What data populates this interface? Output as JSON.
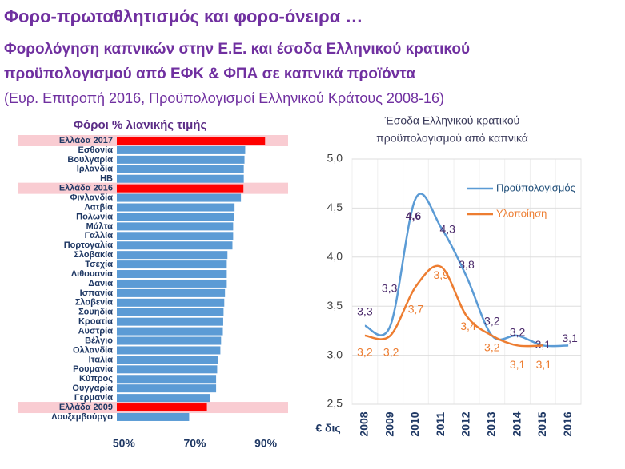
{
  "header": {
    "title": "Φορο-πρωταθλητισμός και φορο-όνειρα …",
    "subtitle": [
      "Φορολόγηση καπνικών στην Ε.Ε. και έσοδα Ελληνικού κρατικού",
      "προϋπολογισμού από ΕΦΚ & ΦΠΑ σε καπνικά προϊόντα"
    ],
    "source": "(Ευρ. Επιτροπή 2016, Προϋπολογισμοί Ελληνικού Κράτους 2008-16)"
  },
  "chart_data": [
    {
      "type": "bar",
      "orientation": "horizontal",
      "title": "Φόροι % λιανικής τιμής",
      "categories": [
        "Ελλάδα 2017",
        "Εσθονία",
        "Βουλγαρία",
        "Ιρλανδία",
        "ΗΒ",
        "Ελλάδα 2016",
        "Φινλανδία",
        "Λατβία",
        "Πολωνία",
        "Μάλτα",
        "Γαλλία",
        "Πορτογαλία",
        "Σλοβακία",
        "Τσεχία",
        "Λιθουανία",
        "Δανία",
        "Ισπανία",
        "Σλοβενία",
        "Σουηδία",
        "Κροατία",
        "Αυστρία",
        "Βέλγιο",
        "Ολλανδία",
        "Ιταλία",
        "Ρουμανία",
        "Κύπρος",
        "Ουγγαρία",
        "Γερμανία",
        "Ελλάδα 2009",
        "Λουξεμβούργο"
      ],
      "values": [
        89.8,
        84.2,
        84,
        83.8,
        83.8,
        83.7,
        83,
        81.2,
        81,
        80.8,
        80.8,
        80.6,
        79.2,
        79,
        79,
        79,
        78.5,
        78.3,
        78.1,
        78,
        77.9,
        77.4,
        77.2,
        76.5,
        76.3,
        76,
        76,
        74.3,
        73.4,
        68.4
      ],
      "colors": [
        "#ff0000",
        "#5b9bd5",
        "#5b9bd5",
        "#5b9bd5",
        "#5b9bd5",
        "#ff0000",
        "#5b9bd5",
        "#5b9bd5",
        "#5b9bd5",
        "#5b9bd5",
        "#5b9bd5",
        "#5b9bd5",
        "#5b9bd5",
        "#5b9bd5",
        "#5b9bd5",
        "#5b9bd5",
        "#5b9bd5",
        "#5b9bd5",
        "#5b9bd5",
        "#5b9bd5",
        "#5b9bd5",
        "#5b9bd5",
        "#5b9bd5",
        "#5b9bd5",
        "#5b9bd5",
        "#5b9bd5",
        "#5b9bd5",
        "#5b9bd5",
        "#ff0000",
        "#5b9bd5"
      ],
      "highlight_color": "#ff0000",
      "xlim": [
        48,
        92
      ],
      "xticks": [
        {
          "value": 50,
          "label": "50%"
        },
        {
          "value": 70,
          "label": "70%"
        },
        {
          "value": 90,
          "label": "90%"
        }
      ]
    },
    {
      "type": "line",
      "title": [
        "Έσοδα Ελληνικού κρατικού",
        "προϋπολογισμού από καπνικά"
      ],
      "ylabel": "€ δις",
      "categories": [
        "2008",
        "2009",
        "2010",
        "2011",
        "2012",
        "2013",
        "2014",
        "2015",
        "2016"
      ],
      "ylim": [
        2.5,
        5.0
      ],
      "yticks": [
        {
          "value": 2.5,
          "label": "2,5"
        },
        {
          "value": 3.0,
          "label": "3,0"
        },
        {
          "value": 3.5,
          "label": "3,5"
        },
        {
          "value": 4.0,
          "label": "4,0"
        },
        {
          "value": 4.5,
          "label": "4,5"
        },
        {
          "value": 5.0,
          "label": "5,0"
        }
      ],
      "grid": true,
      "series": [
        {
          "name": "Προϋπολογισμός",
          "color": "#5b9bd5",
          "values": [
            3.3,
            3.3,
            4.6,
            4.3,
            3.8,
            3.2,
            3.2,
            3.1,
            3.1
          ],
          "value_labels": [
            "3,3",
            "3,3",
            "4,6",
            "4,3",
            "3,8",
            "3,2",
            "3,2",
            "3,1",
            "3,1"
          ]
        },
        {
          "name": "Υλοποίηση",
          "color": "#ed7d31",
          "values": [
            3.2,
            3.2,
            3.7,
            3.9,
            3.4,
            3.2,
            3.1,
            3.1,
            null
          ],
          "value_labels": [
            "3,2",
            "3,2",
            "3,7",
            "3,9",
            "3,4",
            "3,2",
            "3,1",
            "3,1",
            null
          ]
        }
      ]
    }
  ]
}
